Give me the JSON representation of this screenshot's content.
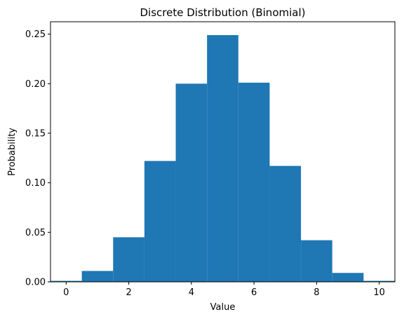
{
  "chart_data": {
    "type": "bar",
    "title": "Discrete Distribution (Binomial)",
    "xlabel": "Value",
    "ylabel": "Probability",
    "x": [
      0,
      1,
      2,
      3,
      4,
      5,
      6,
      7,
      8,
      9,
      10
    ],
    "values": [
      0.001,
      0.011,
      0.045,
      0.122,
      0.2,
      0.249,
      0.201,
      0.117,
      0.042,
      0.009,
      0.001
    ],
    "bar_width": 1,
    "xlim": [
      -0.5,
      10.5
    ],
    "ylim": [
      0,
      0.2625
    ],
    "xticks": [
      0,
      2,
      4,
      6,
      8,
      10
    ],
    "xtick_labels": [
      "0",
      "2",
      "4",
      "6",
      "8",
      "10"
    ],
    "yticks": [
      0,
      0.05,
      0.1,
      0.15,
      0.2,
      0.25
    ],
    "ytick_labels": [
      "0.00",
      "0.05",
      "0.10",
      "0.15",
      "0.20",
      "0.25"
    ],
    "bar_color": "#1f77b4",
    "grid": false,
    "legend": "none"
  }
}
